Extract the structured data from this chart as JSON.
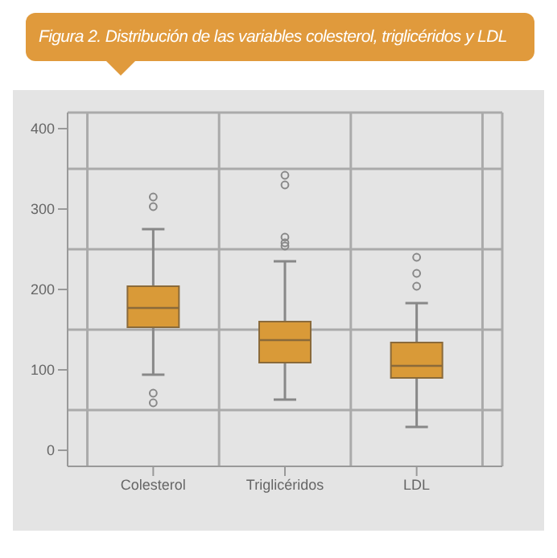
{
  "chart_data": {
    "type": "box",
    "title": "Figura 2. Distribución de las variables colesterol, triglicéridos y LDL",
    "categories": [
      "Colesterol",
      "Triglicéridos",
      "LDL"
    ],
    "color": "#d99a38",
    "boxes": [
      {
        "low": 94,
        "q1": 153,
        "median": 177,
        "q3": 204,
        "high": 275,
        "outliers": [
          315,
          303,
          71,
          59
        ]
      },
      {
        "low": 63,
        "q1": 109,
        "median": 137,
        "q3": 160,
        "high": 235,
        "outliers": [
          342,
          330,
          265,
          258,
          254
        ]
      },
      {
        "low": 29,
        "q1": 90,
        "median": 105,
        "q3": 134,
        "high": 183,
        "outliers": [
          240,
          220,
          204
        ]
      }
    ],
    "ylim": [
      -20,
      420
    ],
    "yticks": [
      0,
      100,
      200,
      300,
      400
    ],
    "grid": true
  }
}
